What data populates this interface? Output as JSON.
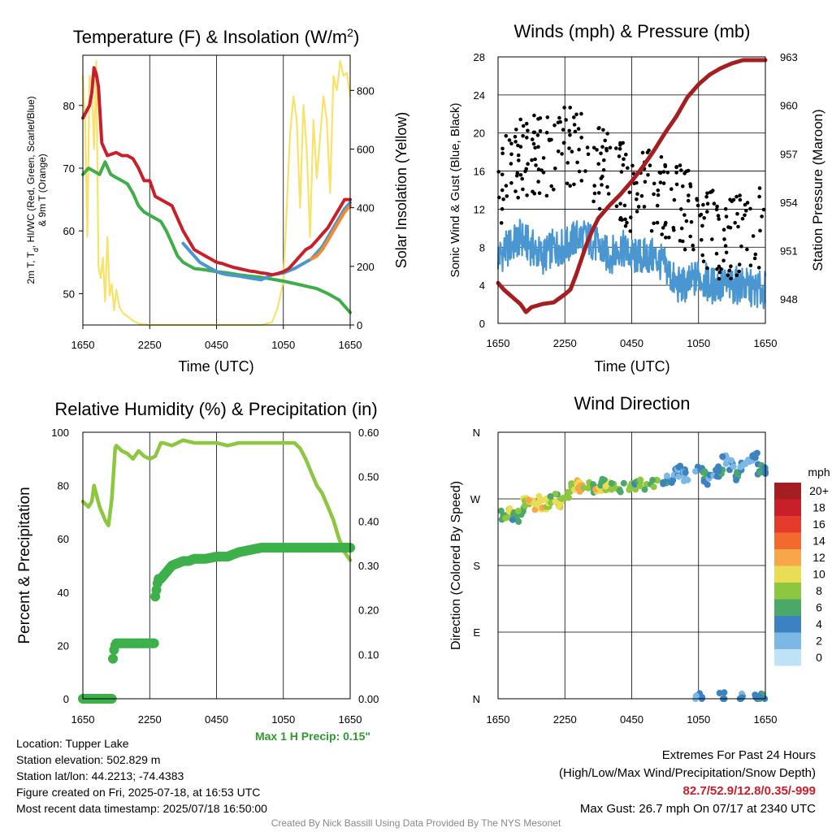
{
  "chart_data": [
    {
      "type": "line",
      "title_main": "Temperature (F) & Insolation (W/m",
      "title_sup": "2",
      "title_end": ")",
      "xlabel": "Time (UTC)",
      "ylabel_line1": "2m T, T",
      "ylabel_sub": "d",
      "ylabel_rest": ", HI/WC (Red, Green, Scarlet/Blue)",
      "ylabel_line2": "& 9m T (Orange)",
      "ylabel_right": "Solar Insolation (Yellow)",
      "x_ticks": [
        "1650",
        "2250",
        "0450",
        "1050",
        "1650"
      ],
      "y_ticks": [
        50,
        60,
        70,
        80
      ],
      "ylim": [
        45,
        88
      ],
      "y2_ticks": [
        0,
        200,
        400,
        600,
        800
      ],
      "y2lim": [
        0,
        920
      ],
      "series": [
        {
          "color": "#c8202a",
          "x": [
            0,
            0.3,
            0.6,
            0.8,
            1.0,
            1.2,
            1.4,
            1.7,
            2.2,
            3.0,
            3.5,
            4.0,
            4.5,
            5.0,
            5.5,
            6.0,
            6.2,
            6.5,
            7.0,
            7.5,
            8.0,
            8.5,
            9.0,
            9.5,
            10.0,
            10.5,
            11.0,
            11.5,
            12.0,
            12.5,
            13.0,
            13.5,
            14.0,
            14.5,
            15.0,
            15.5,
            16.0,
            16.5,
            17.0,
            17.5,
            18.0,
            18.5,
            19.0,
            19.5,
            20.0,
            20.5,
            21.0,
            21.5,
            22.0,
            22.5,
            23.0,
            23.5,
            24.0
          ],
          "y": [
            78,
            79,
            80,
            82,
            86,
            85,
            83,
            74,
            72,
            72.5,
            72,
            72,
            71.5,
            70,
            68,
            68,
            67,
            65.5,
            65,
            64.5,
            64,
            62,
            60,
            58.5,
            57,
            56.5,
            56,
            55.5,
            55,
            54.8,
            54.5,
            54.2,
            54,
            53.8,
            53.6,
            53.5,
            53.3,
            53.2,
            53,
            53.2,
            53.5,
            54,
            55,
            56,
            57,
            57.5,
            58.5,
            59.5,
            60.5,
            62,
            63.5,
            65,
            65
          ]
        },
        {
          "color": "#f08a35",
          "x": [
            20.5,
            21.0,
            21.5,
            22.0,
            22.5,
            23.0,
            23.5,
            24.0
          ],
          "y": [
            55.5,
            56,
            57,
            58.5,
            60,
            61.5,
            63,
            64
          ]
        },
        {
          "color": "#4a96d0",
          "x": [
            9.0,
            9.5,
            10.0,
            10.5,
            11.0,
            11.5,
            12.0,
            12.5,
            13.0,
            14.0,
            15.0,
            16.0,
            17.0,
            18.0,
            19.0,
            20.0,
            20.5,
            21.0,
            21.5,
            22.0,
            22.5,
            23.0,
            23.5,
            24.0
          ],
          "y": [
            58,
            57,
            56,
            55,
            54.5,
            54,
            53.5,
            53.2,
            53,
            52.8,
            52.5,
            52.2,
            53,
            53.3,
            54,
            55,
            55.5,
            56.5,
            57.5,
            59,
            60.5,
            62,
            63.5,
            64.5
          ]
        },
        {
          "color": "#3fae49",
          "x": [
            0,
            0.5,
            1.0,
            1.5,
            2.0,
            2.5,
            3.0,
            3.5,
            4.0,
            4.5,
            5.0,
            5.5,
            6.0,
            6.5,
            7.0,
            7.5,
            8.0,
            8.5,
            9.0,
            9.5,
            10.0,
            11.0,
            12.0,
            13.0,
            14.0,
            15.0,
            16.0,
            17.0,
            18.0,
            19.0,
            20.0,
            21.0,
            22.0,
            22.5,
            23.0,
            23.5,
            24.0
          ],
          "y": [
            69,
            70,
            69.5,
            69,
            71,
            69,
            68.5,
            68,
            67.5,
            66,
            64,
            63,
            62.5,
            62,
            61.5,
            60,
            58,
            56,
            55,
            54.5,
            54,
            53.8,
            53.5,
            53.3,
            53,
            52.8,
            52.6,
            52.3,
            52,
            51.6,
            51.2,
            50.8,
            50,
            49.5,
            49,
            48,
            47
          ]
        }
      ],
      "insolation": {
        "color": "#f7e36a",
        "x": [
          0,
          0.2,
          0.4,
          0.6,
          0.8,
          1.0,
          1.2,
          1.4,
          1.6,
          1.8,
          2.0,
          2.2,
          2.4,
          2.6,
          2.8,
          3.0,
          3.3,
          3.6,
          4.0,
          4.5,
          5.0,
          6.0,
          7.0,
          8.0,
          10.0,
          12.0,
          14.0,
          16.0,
          17.0,
          17.5,
          18.0,
          18.3,
          18.6,
          18.9,
          19.2,
          19.5,
          19.8,
          20.1,
          20.4,
          20.7,
          21.0,
          21.3,
          21.6,
          21.9,
          22.2,
          22.5,
          22.8,
          23.1,
          23.4,
          23.7,
          24.0
        ],
        "y": [
          850,
          700,
          300,
          850,
          820,
          600,
          900,
          200,
          160,
          230,
          80,
          300,
          100,
          140,
          50,
          120,
          60,
          40,
          30,
          15,
          5,
          0,
          0,
          0,
          0,
          0,
          0,
          0,
          10,
          60,
          150,
          400,
          650,
          780,
          700,
          400,
          750,
          600,
          300,
          700,
          500,
          640,
          780,
          700,
          450,
          850,
          800,
          900,
          850,
          860,
          780
        ]
      }
    },
    {
      "type": "scatter",
      "title": "Winds (mph) & Pressure (mb)",
      "xlabel": "Time (UTC)",
      "ylabel": "Sonic Wind & Gust (Blue, Black)",
      "ylabel_right": "Station Pressure (Maroon)",
      "x_ticks": [
        "1650",
        "2250",
        "0450",
        "1050",
        "1650"
      ],
      "y_ticks": [
        0,
        4,
        8,
        12,
        16,
        20,
        24,
        28
      ],
      "ylim": [
        0,
        28
      ],
      "y2_ticks": [
        948,
        951,
        954,
        957,
        960,
        963
      ],
      "y2lim": [
        946.5,
        963
      ],
      "pressure": {
        "color": "#a51f22",
        "x": [
          0,
          0.5,
          1.0,
          1.5,
          2.0,
          2.5,
          3.0,
          3.5,
          4.0,
          5.0,
          6.0,
          6.5,
          7.0,
          7.5,
          8.0,
          8.5,
          9.0,
          10.0,
          11.0,
          12.0,
          13.0,
          14.0,
          15.0,
          16.0,
          17.0,
          18.0,
          19.0,
          20.0,
          21.0,
          21.5,
          22.0,
          22.5,
          23.0,
          24.0
        ],
        "y": [
          949,
          948.6,
          948.3,
          948.0,
          947.7,
          947.2,
          947.5,
          947.6,
          947.7,
          947.8,
          948.3,
          948.6,
          949.5,
          950.5,
          951.5,
          952.3,
          953.0,
          953.8,
          954.5,
          955.3,
          956.2,
          957.2,
          958.3,
          959.3,
          960.5,
          961.3,
          961.9,
          962.3,
          962.6,
          962.7,
          962.8,
          962.8,
          962.8,
          962.8
        ]
      },
      "wind": {
        "color": "#4a96d0",
        "x": [
          0,
          1,
          2,
          3,
          4,
          5,
          6,
          7,
          8,
          9,
          10,
          11,
          12,
          13,
          14,
          15,
          16,
          17,
          18,
          19,
          20,
          21,
          22,
          23,
          24
        ],
        "y": [
          7,
          8,
          9,
          8,
          7,
          8,
          8,
          9,
          9,
          8,
          7,
          8,
          7,
          7,
          7,
          6,
          4,
          4,
          5,
          4,
          4,
          4,
          4,
          3.5,
          3.5
        ]
      },
      "gust": {
        "color": "#000000",
        "count": 300,
        "x": [
          0,
          2,
          4,
          6,
          8,
          10,
          12,
          14,
          16,
          18,
          20,
          22,
          24
        ],
        "y": [
          14,
          18,
          17,
          19,
          17,
          16,
          14,
          14,
          13,
          11,
          9,
          9,
          10
        ]
      }
    },
    {
      "type": "line",
      "title": "Relative Humidity (%) & Precipitation (in)",
      "ylabel": "Percent & Precipitation",
      "x_ticks": [
        "1650",
        "2250",
        "0450",
        "1050",
        "1650"
      ],
      "y_ticks": [
        0,
        20,
        40,
        60,
        80,
        100
      ],
      "ylim": [
        0,
        100
      ],
      "y2_ticks": [
        "0.00",
        "0.10",
        "0.20",
        "0.30",
        "0.40",
        "0.50",
        "0.60"
      ],
      "y2lim": [
        0,
        0.6
      ],
      "rh": {
        "color": "#8dc63f",
        "x": [
          0,
          0.5,
          0.8,
          1.0,
          1.5,
          2.0,
          2.3,
          2.6,
          2.9,
          3.0,
          3.5,
          4.0,
          4.5,
          5.0,
          5.5,
          6.0,
          6.5,
          7.0,
          7.2,
          8.0,
          9.0,
          10.0,
          11.0,
          12.0,
          13.0,
          14.0,
          15.0,
          16.0,
          17.0,
          18.0,
          19.0,
          19.5,
          20.0,
          20.5,
          21.0,
          21.5,
          22.0,
          22.5,
          23.0,
          23.5,
          24.0
        ],
        "y": [
          74,
          72,
          74,
          80,
          72,
          67,
          65,
          75,
          94,
          95,
          93,
          92,
          90,
          93,
          91,
          90,
          91,
          96,
          96,
          95,
          97,
          96,
          96,
          96,
          95,
          96,
          96,
          96,
          96,
          96,
          96,
          94,
          90,
          85,
          80,
          77,
          72,
          67,
          60,
          55,
          52
        ]
      },
      "precip": {
        "color": "#3db04a",
        "x": [
          0,
          1,
          2,
          2.6,
          2.7,
          2.8,
          2.9,
          3.0,
          3.5,
          4.0,
          5.0,
          6.0,
          6.4,
          6.5,
          6.7,
          6.8,
          7.0,
          8.0,
          9.0,
          9.5,
          10.0,
          11.0,
          12.0,
          13.0,
          14.0,
          15.0,
          16.0,
          17.0,
          18.0,
          19.0,
          20.0,
          21.0,
          22.0,
          23.0,
          24.0
        ],
        "y": [
          0,
          0,
          0,
          0,
          0.09,
          0.11,
          0.12,
          0.125,
          0.125,
          0.125,
          0.125,
          0.125,
          0.125,
          0.23,
          0.26,
          0.27,
          0.27,
          0.3,
          0.31,
          0.31,
          0.315,
          0.315,
          0.32,
          0.32,
          0.33,
          0.335,
          0.34,
          0.34,
          0.34,
          0.34,
          0.34,
          0.34,
          0.34,
          0.34,
          0.34
        ]
      },
      "max_precip_label": "Max 1 H Precip: 0.15\""
    },
    {
      "type": "scatter",
      "title": "Wind Direction",
      "ylabel": "Direction (Colored By Speed)",
      "x_ticks": [
        "1650",
        "2250",
        "0450",
        "1050",
        "1650"
      ],
      "y_ticks": [
        "N",
        "E",
        "S",
        "W",
        "N"
      ],
      "colorbar_title": "mph",
      "colorbar_labels": [
        "20+",
        "18",
        "16",
        "14",
        "12",
        "10",
        "8",
        "6",
        "4",
        "2",
        "0"
      ],
      "colorbar_colors": [
        "#a51f22",
        "#c8202a",
        "#e43b2c",
        "#f26a2e",
        "#f8a64a",
        "#e8dd55",
        "#8dc63f",
        "#4aa969",
        "#3d82c0",
        "#7bb8e3",
        "#bfe2f7"
      ],
      "points": [
        {
          "x": 0.5,
          "y": 248,
          "s": 6
        },
        {
          "x": 1.0,
          "y": 250,
          "s": 8
        },
        {
          "x": 1.5,
          "y": 245,
          "s": 5
        },
        {
          "x": 2.0,
          "y": 252,
          "s": 6
        },
        {
          "x": 2.5,
          "y": 265,
          "s": 8
        },
        {
          "x": 3.0,
          "y": 262,
          "s": 10
        },
        {
          "x": 3.5,
          "y": 268,
          "s": 9
        },
        {
          "x": 4.0,
          "y": 262,
          "s": 10
        },
        {
          "x": 4.5,
          "y": 264,
          "s": 8
        },
        {
          "x": 5.0,
          "y": 270,
          "s": 7
        },
        {
          "x": 5.5,
          "y": 263,
          "s": 9
        },
        {
          "x": 6.0,
          "y": 267,
          "s": 7
        },
        {
          "x": 6.5,
          "y": 285,
          "s": 8
        },
        {
          "x": 7.0,
          "y": 288,
          "s": 10
        },
        {
          "x": 7.5,
          "y": 284,
          "s": 12
        },
        {
          "x": 8.0,
          "y": 289,
          "s": 7
        },
        {
          "x": 8.5,
          "y": 283,
          "s": 6
        },
        {
          "x": 9.0,
          "y": 286,
          "s": 10
        },
        {
          "x": 9.5,
          "y": 291,
          "s": 6
        },
        {
          "x": 10.0,
          "y": 286,
          "s": 9
        },
        {
          "x": 10.5,
          "y": 288,
          "s": 7
        },
        {
          "x": 11.0,
          "y": 285,
          "s": 6
        },
        {
          "x": 12.0,
          "y": 288,
          "s": 8
        },
        {
          "x": 12.5,
          "y": 290,
          "s": 5
        },
        {
          "x": 13.0,
          "y": 289,
          "s": 7
        },
        {
          "x": 14.0,
          "y": 292,
          "s": 6
        },
        {
          "x": 15.0,
          "y": 295,
          "s": 4
        },
        {
          "x": 15.5,
          "y": 298,
          "s": 3
        },
        {
          "x": 16.0,
          "y": 305,
          "s": 3
        },
        {
          "x": 16.5,
          "y": 308,
          "s": 4
        },
        {
          "x": 17.0,
          "y": 300,
          "s": 2
        },
        {
          "x": 18.0,
          "y": 312,
          "s": 3
        },
        {
          "x": 18.5,
          "y": 300,
          "s": 5
        },
        {
          "x": 19.0,
          "y": 296,
          "s": 3
        },
        {
          "x": 19.5,
          "y": 305,
          "s": 2
        },
        {
          "x": 20.0,
          "y": 308,
          "s": 4
        },
        {
          "x": 20.5,
          "y": 322,
          "s": 2
        },
        {
          "x": 21.0,
          "y": 315,
          "s": 3
        },
        {
          "x": 21.5,
          "y": 300,
          "s": 4
        },
        {
          "x": 22.0,
          "y": 312,
          "s": 3
        },
        {
          "x": 22.5,
          "y": 318,
          "s": 2
        },
        {
          "x": 23.0,
          "y": 325,
          "s": 3
        },
        {
          "x": 23.5,
          "y": 310,
          "s": 4
        },
        {
          "x": 24.0,
          "y": 308,
          "s": 3
        },
        {
          "x": 18.0,
          "y": 2,
          "s": 2
        },
        {
          "x": 20.0,
          "y": 2,
          "s": 3
        },
        {
          "x": 22.0,
          "y": 2,
          "s": 3
        },
        {
          "x": 23.3,
          "y": 2,
          "s": 3
        },
        {
          "x": 23.8,
          "y": 2,
          "s": 4
        }
      ]
    }
  ],
  "info": {
    "location": "Location: Tupper Lake",
    "elevation": "Station elevation: 502.829 m",
    "latlon": "Station lat/lon: 44.2213; -74.4383",
    "created": "Figure created on Fri, 2025-07-18, at 16:53 UTC",
    "recent": "Most recent data timestamp: 2025/07/18 16:50:00"
  },
  "extremes": {
    "title": "Extremes For Past 24 Hours",
    "subtitle": "(High/Low/Max Wind/Precipitation/Snow Depth)",
    "values": "82.7/52.9/12.8/0.35/-999",
    "values_color": "#c8202a",
    "max_gust": "Max Gust: 26.7 mph On 07/17 at 2340 UTC"
  },
  "credit": "Created By Nick Bassill Using Data Provided By The NYS Mesonet"
}
